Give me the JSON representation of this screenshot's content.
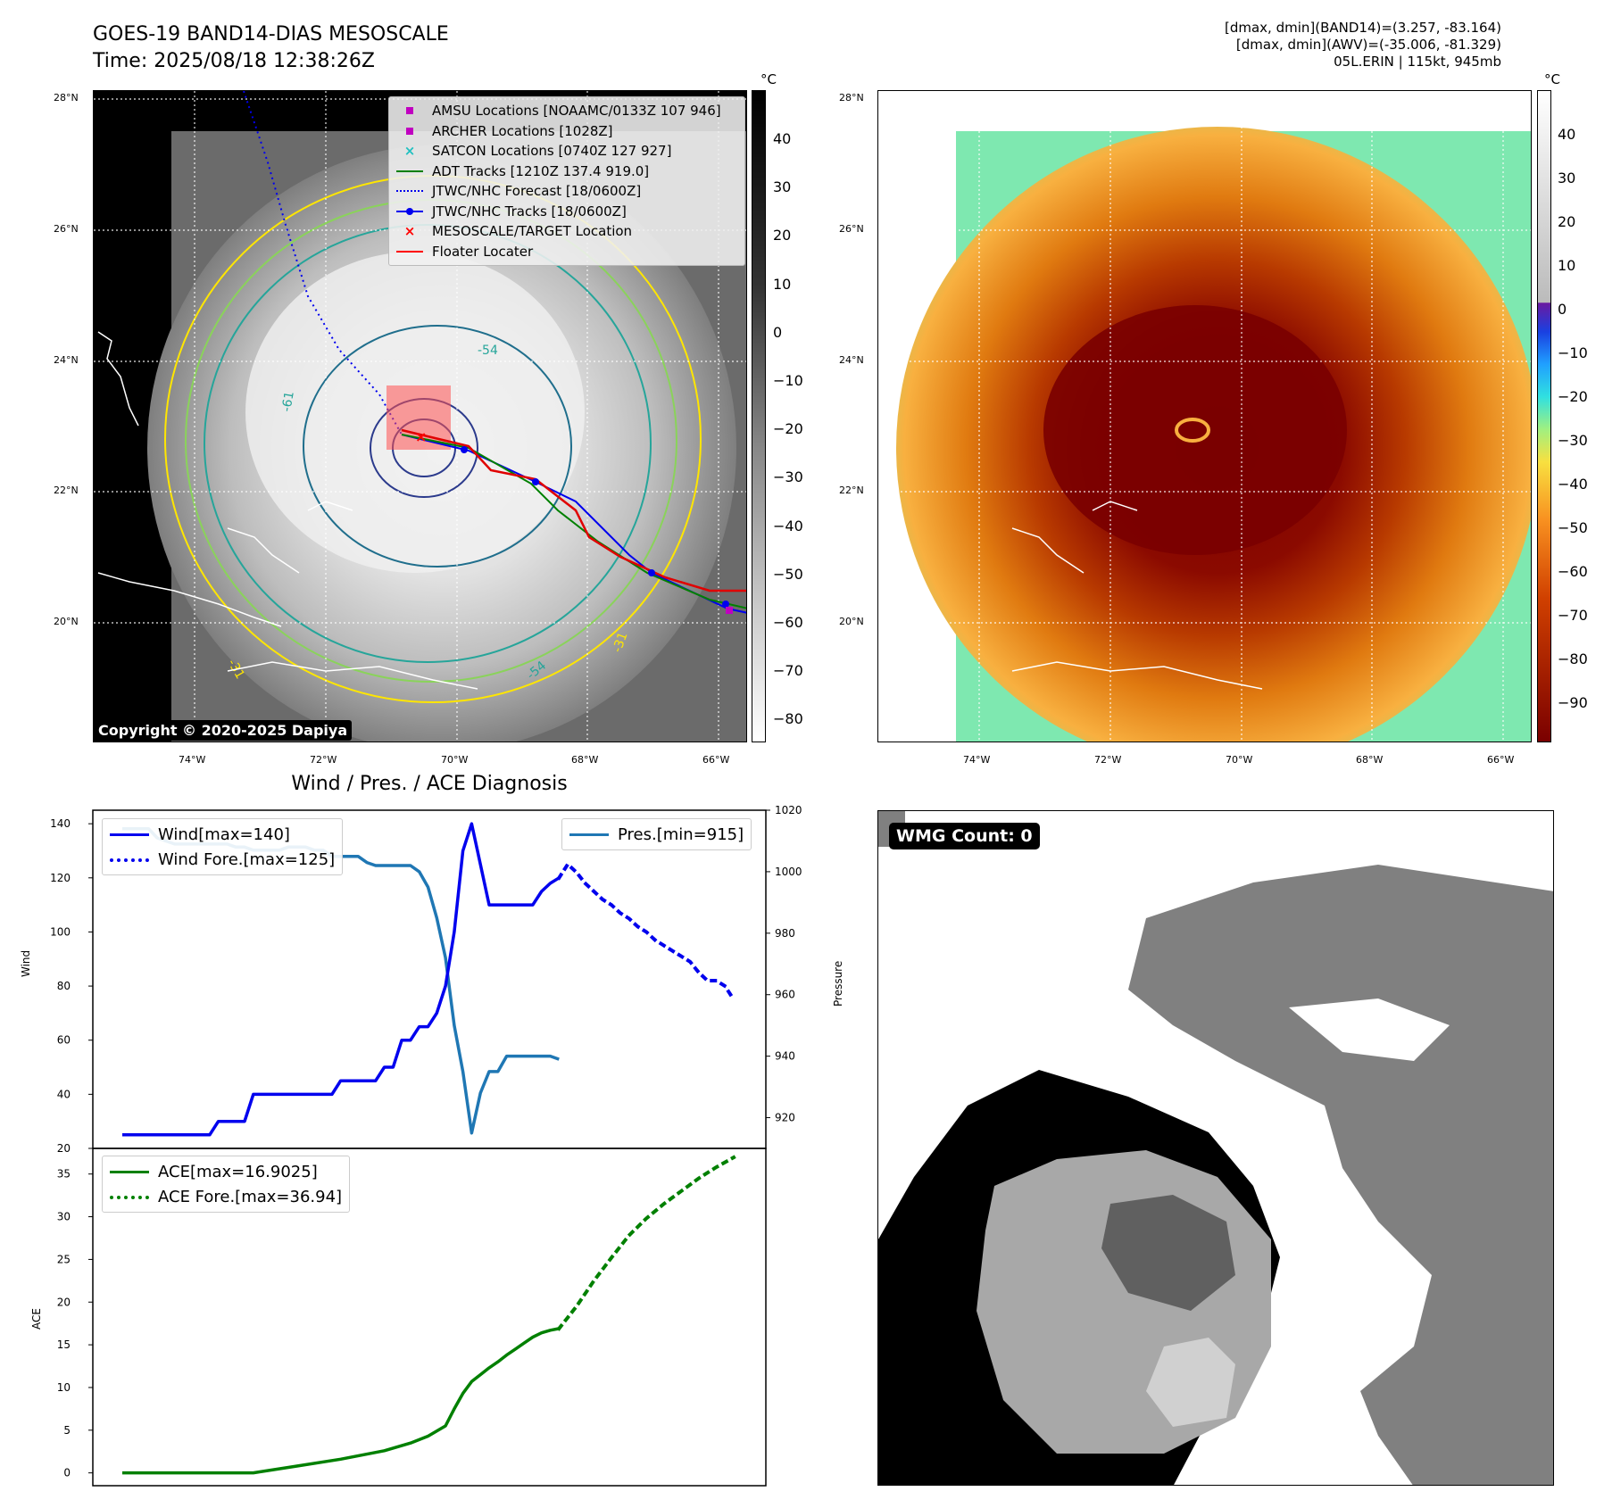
{
  "header": {
    "title_line1": "GOES-19 BAND14-DIAS MESOSCALE",
    "title_line2": "Time: 2025/08/18 12:38:26Z",
    "info_line1": "[dmax, dmin](BAND14)=(3.257, -83.164)",
    "info_line2": "[dmax, dmin](AWV)=(-35.006, -81.329)",
    "info_line3": "05L.ERIN | 115kt, 945mb"
  },
  "map_axes": {
    "lat_labels": [
      "28°N",
      "26°N",
      "24°N",
      "22°N",
      "20°N"
    ],
    "lon_labels": [
      "74°W",
      "72°W",
      "70°W",
      "68°W",
      "66°W"
    ]
  },
  "ir_panel": {
    "copyright": "Copyright © 2020-2025 Dapiya",
    "colorbar_unit": "°C",
    "colorbar_ticks": [
      "40",
      "30",
      "20",
      "10",
      "0",
      "−10",
      "−20",
      "−30",
      "−40",
      "−50",
      "−60",
      "−70",
      "−80"
    ],
    "contour_labels": [
      "-54",
      "-61",
      "-31",
      "-54",
      "-31"
    ],
    "legend": [
      {
        "label": "AMSU Locations [NOAAMC/0133Z 107 946]",
        "color": "#c000c0",
        "kind": "square"
      },
      {
        "label": "ARCHER Locations [1028Z]",
        "color": "#c000c0",
        "kind": "square"
      },
      {
        "label": "SATCON Locations [0740Z 127 927]",
        "color": "#20c0c0",
        "kind": "cross"
      },
      {
        "label": "ADT Tracks [1210Z 137.4 919.0]",
        "color": "#008000",
        "kind": "line"
      },
      {
        "label": "JTWC/NHC Forecast [18/0600Z]",
        "color": "#0000ee",
        "kind": "dotted"
      },
      {
        "label": "JTWC/NHC Tracks [18/0600Z]",
        "color": "#0000ee",
        "kind": "line-dot"
      },
      {
        "label": "MESOSCALE/TARGET Location",
        "color": "#ff0000",
        "kind": "xmark"
      },
      {
        "label": "Floater Locater",
        "color": "#ff0000",
        "kind": "line"
      }
    ]
  },
  "color_panel": {
    "colorbar_unit": "°C",
    "colorbar_ticks": [
      "40",
      "30",
      "20",
      "10",
      "0",
      "−10",
      "−20",
      "−30",
      "−40",
      "−50",
      "−60",
      "−70",
      "−80",
      "−90"
    ]
  },
  "diagnosis": {
    "title": "Wind / Pres. / ACE Diagnosis",
    "wind_ylabel": "Wind",
    "pressure_ylabel": "Pressure",
    "ace_ylabel": "ACE",
    "wind_ticks": [
      "140",
      "120",
      "100",
      "80",
      "60",
      "40",
      "20"
    ],
    "pressure_ticks": [
      "1020",
      "1000",
      "980",
      "960",
      "940",
      "920"
    ],
    "ace_ticks": [
      "35",
      "30",
      "25",
      "20",
      "15",
      "10",
      "5",
      "0"
    ],
    "legend_wind": "Wind[max=140]",
    "legend_wind_fore": "Wind Fore.[max=125]",
    "legend_pres": "Pres.[min=915]",
    "legend_ace": "ACE[max=16.9025]",
    "legend_ace_fore": "ACE Fore.[max=36.94]"
  },
  "wmg_panel": {
    "label": "WMG Count: 0"
  },
  "chart_data": [
    {
      "type": "line",
      "title": "Wind / Pres. / ACE Diagnosis",
      "ylabel": "Wind",
      "ylim": [
        20,
        145
      ],
      "series": [
        {
          "name": "Wind[max=140]",
          "color": "#0000ee",
          "style": "solid",
          "x": [
            0,
            1,
            2,
            3,
            4,
            5,
            6,
            7,
            8,
            9,
            10,
            11,
            12,
            13,
            14,
            15,
            16,
            17,
            18,
            19,
            20,
            21,
            22,
            23,
            24,
            25,
            26,
            27,
            28,
            29,
            30,
            31,
            32,
            33,
            34,
            35,
            36,
            37,
            38,
            39,
            40,
            41,
            42,
            43,
            44,
            45,
            46,
            47,
            48,
            49,
            50
          ],
          "y": [
            25,
            25,
            25,
            25,
            25,
            25,
            25,
            25,
            25,
            25,
            25,
            30,
            30,
            30,
            30,
            40,
            40,
            40,
            40,
            40,
            40,
            40,
            40,
            40,
            40,
            45,
            45,
            45,
            45,
            45,
            50,
            50,
            60,
            60,
            65,
            65,
            70,
            80,
            100,
            130,
            140,
            125,
            110,
            110,
            110,
            110,
            110,
            110,
            115,
            118,
            120
          ]
        },
        {
          "name": "Wind Fore.[max=125]",
          "color": "#0000ee",
          "style": "dotted",
          "x": [
            50,
            51,
            52,
            53,
            54,
            55,
            56,
            57,
            58,
            59,
            60,
            61,
            62,
            63,
            64,
            65,
            66,
            67,
            68,
            69,
            70
          ],
          "y": [
            120,
            125,
            122,
            118,
            115,
            112,
            110,
            107,
            105,
            102,
            100,
            97,
            95,
            93,
            91,
            89,
            85,
            82,
            82,
            80,
            75
          ]
        }
      ]
    },
    {
      "type": "line",
      "ylabel": "Pressure",
      "ylim": [
        910,
        1020
      ],
      "series": [
        {
          "name": "Pres.[min=915]",
          "color": "#1f77b4",
          "style": "solid",
          "x": [
            0,
            1,
            2,
            3,
            4,
            5,
            6,
            7,
            8,
            9,
            10,
            11,
            12,
            13,
            14,
            15,
            16,
            17,
            18,
            19,
            20,
            21,
            22,
            23,
            24,
            25,
            26,
            27,
            28,
            29,
            30,
            31,
            32,
            33,
            34,
            35,
            36,
            37,
            38,
            39,
            40,
            41,
            42,
            43,
            44,
            45,
            46,
            47,
            48,
            49,
            50
          ],
          "y": [
            1014,
            1014,
            1014,
            1014,
            1011,
            1010,
            1009,
            1009,
            1009,
            1009,
            1009,
            1009,
            1009,
            1008,
            1008,
            1007,
            1007,
            1007,
            1007,
            1008,
            1008,
            1008,
            1007,
            1007,
            1005,
            1005,
            1005,
            1005,
            1003,
            1002,
            1002,
            1002,
            1002,
            1002,
            1000,
            995,
            985,
            972,
            950,
            935,
            915,
            928,
            935,
            935,
            940,
            940,
            940,
            940,
            940,
            940,
            939
          ]
        }
      ]
    },
    {
      "type": "line",
      "ylabel": "ACE",
      "ylim": [
        -1.5,
        38
      ],
      "series": [
        {
          "name": "ACE[max=16.9025]",
          "color": "#008000",
          "style": "solid",
          "x": [
            0,
            5,
            10,
            15,
            20,
            25,
            30,
            33,
            35,
            37,
            38,
            39,
            40,
            41,
            42,
            43,
            44,
            45,
            46,
            47,
            48,
            49,
            50
          ],
          "y": [
            0,
            0,
            0,
            0,
            0.8,
            1.6,
            2.6,
            3.5,
            4.3,
            5.5,
            7.5,
            9.3,
            10.7,
            11.5,
            12.3,
            13.0,
            13.8,
            14.5,
            15.2,
            15.9,
            16.4,
            16.7,
            16.9
          ]
        },
        {
          "name": "ACE Fore.[max=36.94]",
          "color": "#008000",
          "style": "dotted",
          "x": [
            50,
            52,
            54,
            56,
            58,
            60,
            62,
            64,
            66,
            68,
            70
          ],
          "y": [
            16.9,
            19.5,
            22.5,
            25.2,
            27.8,
            29.8,
            31.5,
            33.0,
            34.5,
            35.8,
            36.94
          ]
        }
      ]
    }
  ]
}
